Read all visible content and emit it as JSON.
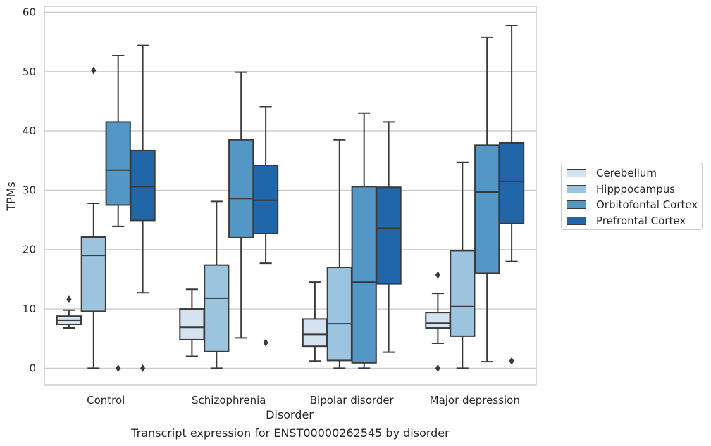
{
  "chart_data": {
    "type": "boxplot",
    "title": "Transcript expression for ENST00000262545 by disorder",
    "xlabel": "Disorder",
    "ylabel": "TPMs",
    "ylim": [
      -2.8,
      61
    ],
    "yticks": [
      0,
      10,
      20,
      30,
      40,
      50,
      60
    ],
    "grid": "horizontal",
    "legend_position": "right",
    "categories": [
      "Control",
      "Schizophrenia",
      "Bipolar disorder",
      "Major depression"
    ],
    "series": [
      {
        "name": "Cerebellum",
        "color": "#d5e3f0",
        "boxes": [
          {
            "whislo": 6.8,
            "q1": 7.4,
            "med": 8.0,
            "q3": 8.8,
            "whishi": 9.8,
            "fliers": [
              11.6
            ]
          },
          {
            "whislo": 2.0,
            "q1": 4.8,
            "med": 6.9,
            "q3": 10.0,
            "whishi": 13.3,
            "fliers": []
          },
          {
            "whislo": 1.2,
            "q1": 3.7,
            "med": 5.7,
            "q3": 8.3,
            "whishi": 14.5,
            "fliers": []
          },
          {
            "whislo": 4.2,
            "q1": 6.8,
            "med": 7.6,
            "q3": 9.4,
            "whishi": 12.6,
            "fliers": [
              15.7,
              0.0
            ]
          }
        ]
      },
      {
        "name": "Hipppocampus",
        "color": "#9dc4df",
        "boxes": [
          {
            "whislo": 0.0,
            "q1": 9.6,
            "med": 19.0,
            "q3": 22.1,
            "whishi": 27.8,
            "fliers": [
              50.2
            ]
          },
          {
            "whislo": 0.0,
            "q1": 2.8,
            "med": 11.8,
            "q3": 17.4,
            "whishi": 28.1,
            "fliers": []
          },
          {
            "whislo": 0.0,
            "q1": 1.3,
            "med": 7.5,
            "q3": 17.0,
            "whishi": 38.5,
            "fliers": []
          },
          {
            "whislo": 0.0,
            "q1": 5.4,
            "med": 10.4,
            "q3": 19.8,
            "whishi": 34.7,
            "fliers": []
          }
        ]
      },
      {
        "name": "Orbitofontal Cortex",
        "color": "#5297c6",
        "boxes": [
          {
            "whislo": 23.9,
            "q1": 27.5,
            "med": 33.4,
            "q3": 41.5,
            "whishi": 52.7,
            "fliers": [
              0.0
            ]
          },
          {
            "whislo": 5.1,
            "q1": 22.0,
            "med": 28.6,
            "q3": 38.5,
            "whishi": 49.9,
            "fliers": []
          },
          {
            "whislo": 0.0,
            "q1": 0.9,
            "med": 14.5,
            "q3": 30.6,
            "whishi": 43.0,
            "fliers": []
          },
          {
            "whislo": 1.1,
            "q1": 16.0,
            "med": 29.7,
            "q3": 37.6,
            "whishi": 55.8,
            "fliers": []
          }
        ]
      },
      {
        "name": "Prefrontal Cortex",
        "color": "#2166a8",
        "boxes": [
          {
            "whislo": 12.7,
            "q1": 24.9,
            "med": 30.6,
            "q3": 36.7,
            "whishi": 54.4,
            "fliers": [
              0.0
            ]
          },
          {
            "whislo": 17.7,
            "q1": 22.7,
            "med": 28.3,
            "q3": 34.2,
            "whishi": 44.1,
            "fliers": [
              4.3
            ]
          },
          {
            "whislo": 2.7,
            "q1": 14.2,
            "med": 23.6,
            "q3": 30.5,
            "whishi": 41.5,
            "fliers": []
          },
          {
            "whislo": 18.0,
            "q1": 24.4,
            "med": 31.5,
            "q3": 38.0,
            "whishi": 57.8,
            "fliers": [
              1.2
            ]
          }
        ]
      }
    ]
  }
}
